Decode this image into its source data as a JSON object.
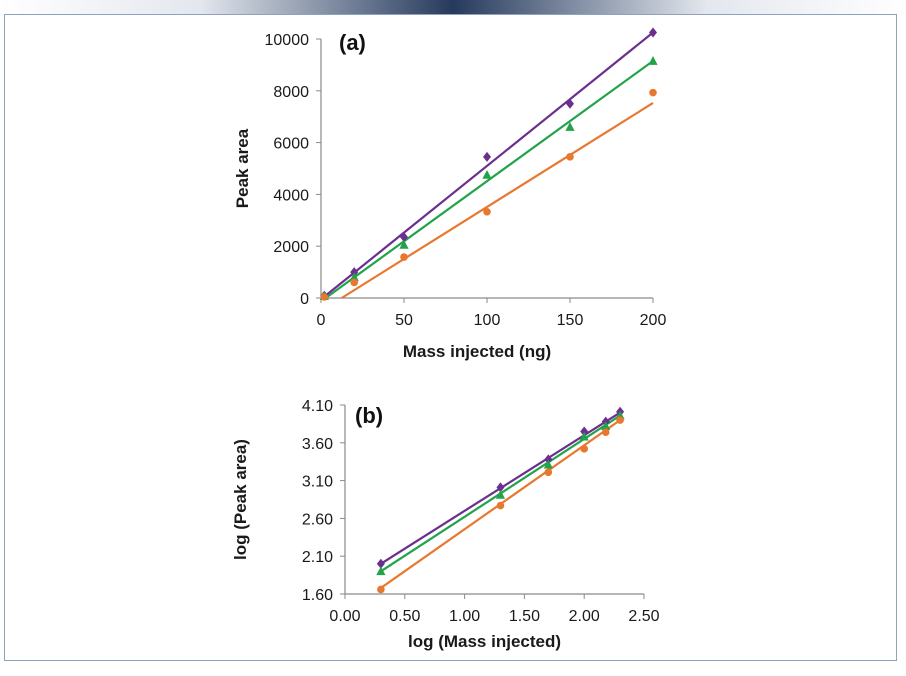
{
  "figure": {
    "border_color": "#8fa3bf",
    "band_color": "#263a5c"
  },
  "chart_data": [
    {
      "type": "scatter",
      "panel_label": "(a)",
      "xlabel": "Mass injected (ng)",
      "ylabel": "Peak area",
      "xlim": [
        0,
        200
      ],
      "ylim": [
        0,
        10000
      ],
      "x_ticks": [
        "0",
        "50",
        "100",
        "150",
        "200"
      ],
      "y_ticks": [
        "0",
        "2000",
        "4000",
        "6000",
        "8000",
        "10000"
      ],
      "x_tick_values": [
        0,
        50,
        100,
        150,
        200
      ],
      "y_tick_values": [
        0,
        2000,
        4000,
        6000,
        8000,
        10000
      ],
      "grid": false,
      "series": [
        {
          "name": "purple",
          "marker": "diamond",
          "color": "#6b2f8f",
          "points": [
            [
              2,
              90
            ],
            [
              20,
              1000
            ],
            [
              50,
              2350
            ],
            [
              100,
              5450
            ],
            [
              150,
              7500
            ],
            [
              200,
              10250
            ]
          ],
          "trendline": [
            [
              0,
              -50
            ],
            [
              200,
              10250
            ]
          ]
        },
        {
          "name": "green",
          "marker": "triangle",
          "color": "#22a34a",
          "points": [
            [
              2,
              70
            ],
            [
              20,
              800
            ],
            [
              50,
              2050
            ],
            [
              100,
              4750
            ],
            [
              150,
              6600
            ],
            [
              200,
              9150
            ]
          ],
          "trendline": [
            [
              0,
              -130
            ],
            [
              200,
              9150
            ]
          ]
        },
        {
          "name": "orange",
          "marker": "circle",
          "color": "#e8782f",
          "points": [
            [
              2,
              40
            ],
            [
              20,
              600
            ],
            [
              50,
              1580
            ],
            [
              100,
              3330
            ],
            [
              150,
              5450
            ],
            [
              200,
              7930
            ]
          ],
          "trendline": [
            [
              0,
              -500
            ],
            [
              200,
              7530
            ]
          ]
        }
      ]
    },
    {
      "type": "scatter",
      "panel_label": "(b)",
      "xlabel": "log (Mass injected)",
      "ylabel": "log (Peak area)",
      "xlim": [
        0,
        2.5
      ],
      "ylim": [
        1.6,
        4.1
      ],
      "x_ticks": [
        "0.00",
        "0.50",
        "1.00",
        "1.50",
        "2.00",
        "2.50"
      ],
      "y_ticks": [
        "1.60",
        "2.10",
        "2.60",
        "3.10",
        "3.60",
        "4.10"
      ],
      "x_tick_values": [
        0,
        0.5,
        1.0,
        1.5,
        2.0,
        2.5
      ],
      "y_tick_values": [
        1.6,
        2.1,
        2.6,
        3.1,
        3.6,
        4.1
      ],
      "grid": false,
      "series": [
        {
          "name": "purple",
          "marker": "diamond",
          "color": "#6b2f8f",
          "points": [
            [
              0.3,
              2.0
            ],
            [
              1.3,
              3.01
            ],
            [
              1.7,
              3.38
            ],
            [
              2.0,
              3.75
            ],
            [
              2.18,
              3.88
            ],
            [
              2.3,
              4.01
            ]
          ],
          "trendline": [
            [
              0.3,
              2.0
            ],
            [
              2.3,
              4.0
            ]
          ]
        },
        {
          "name": "green",
          "marker": "triangle",
          "color": "#22a34a",
          "points": [
            [
              0.3,
              1.9
            ],
            [
              1.3,
              2.91
            ],
            [
              1.7,
              3.31
            ],
            [
              2.0,
              3.68
            ],
            [
              2.18,
              3.82
            ],
            [
              2.3,
              3.96
            ]
          ],
          "trendline": [
            [
              0.3,
              1.9
            ],
            [
              2.3,
              3.96
            ]
          ]
        },
        {
          "name": "orange",
          "marker": "circle",
          "color": "#e8782f",
          "points": [
            [
              0.3,
              1.66
            ],
            [
              1.3,
              2.77
            ],
            [
              1.7,
              3.21
            ],
            [
              2.0,
              3.52
            ],
            [
              2.18,
              3.74
            ],
            [
              2.3,
              3.9
            ]
          ],
          "trendline": [
            [
              0.3,
              1.68
            ],
            [
              2.3,
              3.9
            ]
          ]
        }
      ]
    }
  ]
}
